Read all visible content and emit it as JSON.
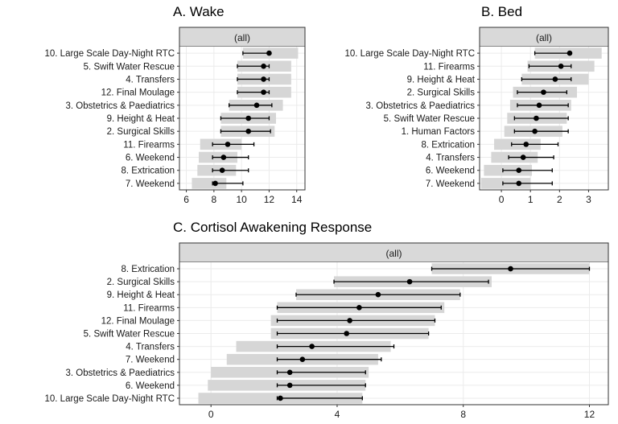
{
  "figure": {
    "panels": [
      {
        "title": "A. Wake",
        "strip": "(all)"
      },
      {
        "title": "B. Bed",
        "strip": "(all)"
      },
      {
        "title": "C. Cortisol Awakening Response",
        "strip": "(all)"
      }
    ]
  },
  "chart_data": [
    {
      "type": "dot-interval",
      "title": "A. Wake",
      "strip_label": "(all)",
      "xlim": [
        5.5,
        14.6
      ],
      "xticks": [
        6,
        8,
        10,
        12,
        14
      ],
      "grid": true,
      "categories": [
        "10. Large Scale Day-Night RTC",
        "5. Swift Water Rescue",
        "4. Transfers",
        "12. Final Moulage",
        "3. Obstetrics & Paediatrics",
        "9. Height & Heat",
        "2. Surgical Skills",
        "11. Firearms",
        "6. Weekend",
        "8. Extrication",
        "7. Weekend"
      ],
      "series": [
        {
          "values": [
            12.0,
            11.6,
            11.6,
            11.6,
            11.1,
            10.5,
            10.5,
            9.0,
            8.7,
            8.6,
            8.1
          ]
        },
        {
          "values": [
            10.1,
            9.7,
            9.7,
            9.7,
            9.1,
            8.5,
            8.5,
            7.9,
            7.9,
            7.9,
            7.9
          ]
        },
        {
          "values": [
            12.0,
            12.0,
            12.0,
            12.0,
            12.2,
            12.0,
            12.1,
            10.9,
            10.5,
            10.5,
            10.1
          ]
        },
        {
          "values": [
            14.1,
            13.6,
            13.6,
            13.6,
            13.0,
            12.5,
            12.4,
            10.0,
            9.7,
            9.6,
            8.9
          ]
        },
        {
          "values": [
            10.1,
            9.7,
            9.7,
            9.7,
            9.1,
            8.5,
            8.5,
            7.0,
            6.9,
            6.8,
            6.4
          ]
        }
      ]
    },
    {
      "type": "dot-interval",
      "title": "B. Bed",
      "strip_label": "(all)",
      "xlim": [
        -0.75,
        3.68
      ],
      "xticks": [
        0,
        1,
        2,
        3
      ],
      "grid": true,
      "categories": [
        "10. Large Scale Day-Night RTC",
        "11. Firearms",
        "9. Height & Heat",
        "2. Surgical Skills",
        "3. Obstetrics & Paediatrics",
        "5. Swift Water Rescue",
        "1. Human Factors",
        "8. Extrication",
        "4. Transfers",
        "6. Weekend",
        "7. Weekend"
      ],
      "series": [
        {
          "values": [
            2.35,
            2.05,
            1.85,
            1.45,
            1.3,
            1.2,
            1.15,
            0.85,
            0.75,
            0.6,
            0.6
          ]
        },
        {
          "values": [
            1.15,
            0.95,
            0.7,
            0.55,
            0.55,
            0.45,
            0.45,
            0.35,
            0.25,
            0.05,
            0.05
          ]
        },
        {
          "values": [
            2.35,
            2.4,
            2.4,
            2.25,
            2.3,
            2.3,
            2.3,
            1.95,
            1.8,
            1.75,
            1.75
          ]
        },
        {
          "values": [
            3.45,
            3.2,
            3.0,
            2.6,
            2.4,
            2.25,
            2.1,
            1.35,
            1.25,
            1.05,
            1.0
          ]
        },
        {
          "values": [
            1.15,
            0.9,
            0.7,
            0.4,
            0.3,
            0.2,
            0.1,
            -0.25,
            -0.35,
            -0.6,
            -0.7
          ]
        }
      ]
    },
    {
      "type": "dot-interval",
      "title": "C. Cortisol Awakening Response",
      "strip_label": "(all)",
      "xlim": [
        -1.0,
        12.6
      ],
      "xticks": [
        0,
        4,
        8,
        12
      ],
      "grid": true,
      "categories": [
        "8. Extrication",
        "2. Surgical Skills",
        "9. Height & Heat",
        "11. Firearms",
        "12. Final Moulage",
        "5. Swift Water Rescue",
        "4. Transfers",
        "7. Weekend",
        "3. Obstetrics & Paediatrics",
        "6. Weekend",
        "10. Large Scale Day-Night RTC"
      ],
      "series": [
        {
          "values": [
            9.5,
            6.3,
            5.3,
            4.7,
            4.4,
            4.3,
            3.2,
            2.9,
            2.5,
            2.5,
            2.2
          ]
        },
        {
          "values": [
            7.0,
            3.9,
            2.7,
            2.1,
            2.1,
            2.1,
            2.1,
            2.1,
            2.1,
            2.1,
            2.1
          ]
        },
        {
          "values": [
            12.0,
            8.8,
            7.9,
            7.3,
            7.1,
            6.9,
            5.8,
            5.4,
            4.9,
            4.9,
            4.8
          ]
        },
        {
          "values": [
            12.0,
            8.9,
            7.9,
            7.4,
            7.1,
            6.9,
            5.7,
            5.3,
            5.0,
            4.9,
            4.8
          ]
        },
        {
          "values": [
            7.0,
            3.9,
            2.7,
            2.1,
            1.9,
            1.9,
            0.8,
            0.5,
            0.0,
            -0.1,
            -0.4
          ]
        }
      ]
    }
  ]
}
